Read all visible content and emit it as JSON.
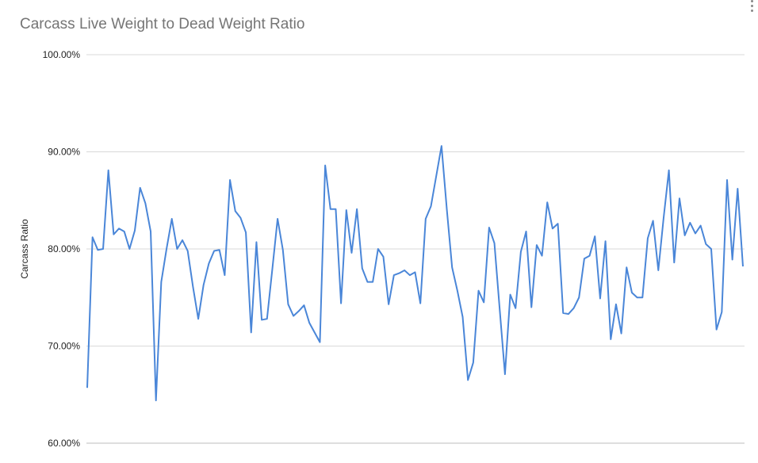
{
  "chart_data": {
    "type": "line",
    "title": "Carcass Live Weight to Dead Weight Ratio",
    "ylabel": "Carcass Ratio",
    "xlabel": "",
    "ylim": [
      0.6,
      1.0
    ],
    "yticks": [
      {
        "value": 1.0,
        "label": "100.00%"
      },
      {
        "value": 0.9,
        "label": "90.00%"
      },
      {
        "value": 0.8,
        "label": "80.00%"
      },
      {
        "value": 0.7,
        "label": "70.00%"
      },
      {
        "value": 0.6,
        "label": "60.00%"
      }
    ],
    "grid": true,
    "legend": "none",
    "series": [
      {
        "color": "#4a86d8",
        "values": [
          0.657,
          0.812,
          0.799,
          0.8,
          0.881,
          0.815,
          0.821,
          0.818,
          0.8,
          0.819,
          0.863,
          0.847,
          0.818,
          0.644,
          0.766,
          0.8,
          0.831,
          0.8,
          0.809,
          0.798,
          0.761,
          0.728,
          0.763,
          0.785,
          0.798,
          0.799,
          0.773,
          0.871,
          0.839,
          0.832,
          0.817,
          0.714,
          0.807,
          0.727,
          0.728,
          0.779,
          0.831,
          0.799,
          0.743,
          0.731,
          0.736,
          0.742,
          0.724,
          0.714,
          0.704,
          0.886,
          0.841,
          0.841,
          0.744,
          0.84,
          0.796,
          0.841,
          0.78,
          0.766,
          0.766,
          0.8,
          0.792,
          0.743,
          0.773,
          0.775,
          0.778,
          0.773,
          0.776,
          0.744,
          0.831,
          0.844,
          0.875,
          0.906,
          0.841,
          0.781,
          0.757,
          0.73,
          0.665,
          0.683,
          0.757,
          0.745,
          0.822,
          0.806,
          0.738,
          0.671,
          0.753,
          0.739,
          0.797,
          0.818,
          0.74,
          0.804,
          0.793,
          0.848,
          0.821,
          0.826,
          0.734,
          0.733,
          0.739,
          0.75,
          0.79,
          0.793,
          0.813,
          0.749,
          0.808,
          0.707,
          0.743,
          0.713,
          0.781,
          0.755,
          0.75,
          0.75,
          0.811,
          0.829,
          0.778,
          0.832,
          0.881,
          0.786,
          0.852,
          0.814,
          0.827,
          0.816,
          0.824,
          0.805,
          0.8,
          0.717,
          0.735,
          0.871,
          0.789,
          0.862,
          0.782
        ]
      }
    ]
  }
}
